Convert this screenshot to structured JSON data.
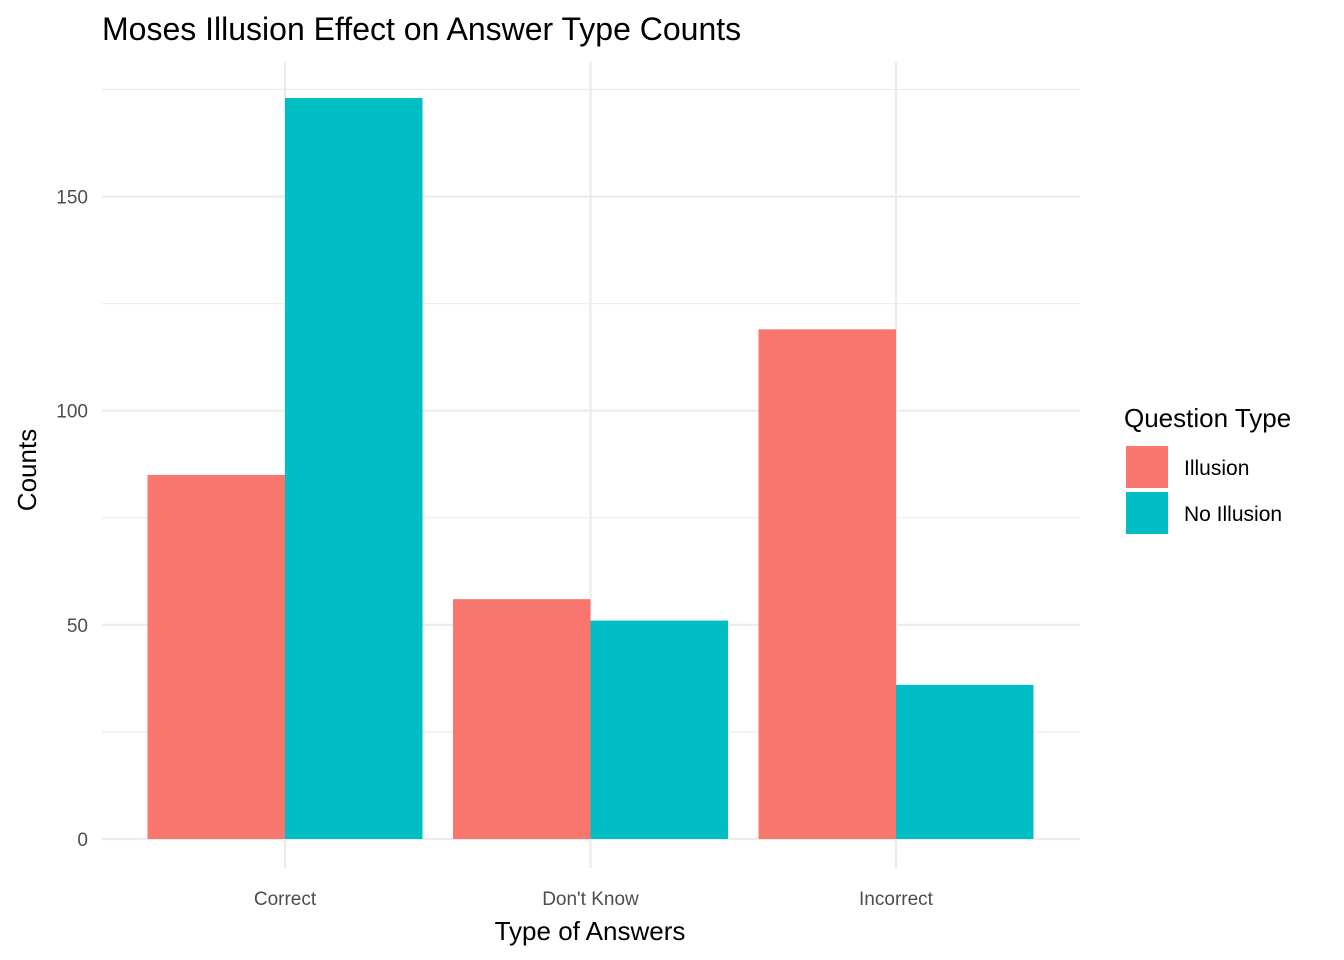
{
  "chart_data": {
    "type": "bar",
    "title": "Moses Illusion Effect on Answer Type Counts",
    "xlabel": "Type of Answers",
    "ylabel": "Counts",
    "categories": [
      "Correct",
      "Don't Know",
      "Incorrect"
    ],
    "series": [
      {
        "name": "Illusion",
        "color": "#F8766D",
        "values": [
          85,
          56,
          119
        ]
      },
      {
        "name": "No Illusion",
        "color": "#00BFC4",
        "values": [
          173,
          51,
          36
        ]
      }
    ],
    "ylim": [
      0,
      181.5
    ],
    "yticks": [
      0,
      50,
      100,
      150
    ],
    "ytick_labels": [
      "0",
      "50",
      "100",
      "150"
    ],
    "grid": true,
    "legend": {
      "title": "Question Type",
      "position": "right"
    }
  }
}
